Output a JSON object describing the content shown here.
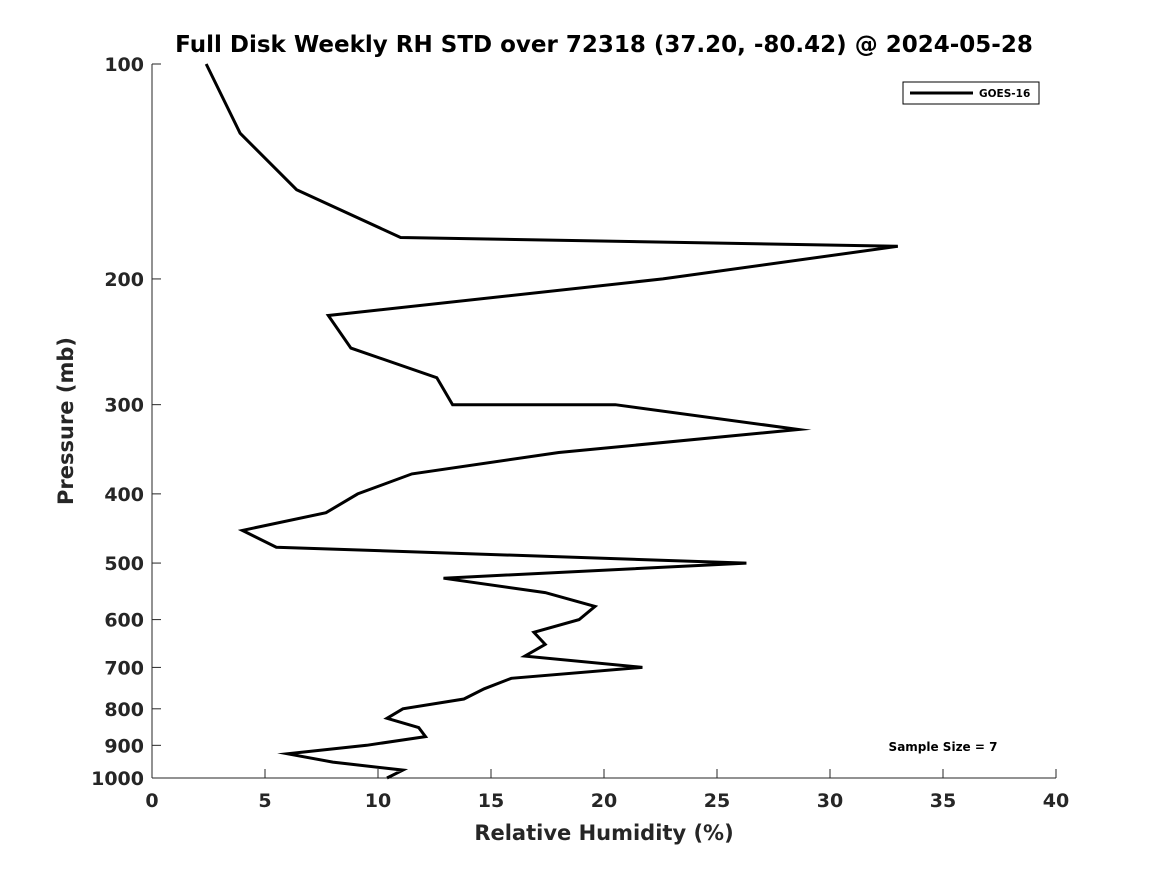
{
  "chart_data": {
    "type": "line",
    "title": "Full Disk Weekly RH STD over 72318 (37.20, -80.42) @ 2024-05-28",
    "xlabel": "Relative Humidity (%)",
    "ylabel": "Pressure (mb)",
    "xlim": [
      0,
      40
    ],
    "ylim": [
      100,
      1000
    ],
    "y_scale": "log",
    "y_reversed": true,
    "x_ticks": [
      "0",
      "5",
      "10",
      "15",
      "20",
      "25",
      "30",
      "35",
      "40"
    ],
    "y_ticks": [
      "100",
      "200",
      "300",
      "400",
      "500",
      "600",
      "700",
      "800",
      "900",
      "1000"
    ],
    "grid": false,
    "legend_position": "top-right",
    "annotation": "Sample Size = 7",
    "series": [
      {
        "name": "GOES-16",
        "color": "#000000",
        "points": [
          {
            "x": 2.4,
            "p": 100
          },
          {
            "x": 3.9,
            "p": 125
          },
          {
            "x": 6.4,
            "p": 150
          },
          {
            "x": 11.0,
            "p": 175
          },
          {
            "x": 33.0,
            "p": 180
          },
          {
            "x": 22.6,
            "p": 200
          },
          {
            "x": 7.8,
            "p": 225
          },
          {
            "x": 8.8,
            "p": 250
          },
          {
            "x": 12.6,
            "p": 275
          },
          {
            "x": 13.3,
            "p": 300
          },
          {
            "x": 20.5,
            "p": 300
          },
          {
            "x": 28.6,
            "p": 325
          },
          {
            "x": 18.0,
            "p": 350
          },
          {
            "x": 11.5,
            "p": 375
          },
          {
            "x": 9.1,
            "p": 400
          },
          {
            "x": 7.7,
            "p": 425
          },
          {
            "x": 4.0,
            "p": 450
          },
          {
            "x": 5.5,
            "p": 475
          },
          {
            "x": 26.3,
            "p": 500
          },
          {
            "x": 12.9,
            "p": 525
          },
          {
            "x": 17.4,
            "p": 550
          },
          {
            "x": 19.6,
            "p": 575
          },
          {
            "x": 18.9,
            "p": 600
          },
          {
            "x": 16.9,
            "p": 625
          },
          {
            "x": 17.4,
            "p": 650
          },
          {
            "x": 16.5,
            "p": 675
          },
          {
            "x": 21.7,
            "p": 700
          },
          {
            "x": 15.9,
            "p": 725
          },
          {
            "x": 14.7,
            "p": 750
          },
          {
            "x": 13.8,
            "p": 775
          },
          {
            "x": 11.1,
            "p": 800
          },
          {
            "x": 10.4,
            "p": 825
          },
          {
            "x": 11.8,
            "p": 850
          },
          {
            "x": 12.1,
            "p": 875
          },
          {
            "x": 9.5,
            "p": 900
          },
          {
            "x": 6.0,
            "p": 925
          },
          {
            "x": 8.0,
            "p": 950
          },
          {
            "x": 11.1,
            "p": 975
          },
          {
            "x": 10.4,
            "p": 1000
          }
        ]
      }
    ]
  }
}
